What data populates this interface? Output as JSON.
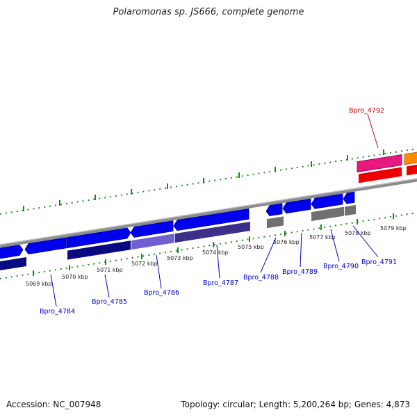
{
  "title": "Polaromonas sp. JS666, complete genome",
  "footer": {
    "accession": "Accession: NC_007948",
    "topology": "Topology: circular; Length: 5,200,264 bp; Genes: 4,873"
  },
  "colors": {
    "tick": "#1a8a1a",
    "backbone": "#8c8c8c",
    "label_blue": "#0000cc",
    "label_red": "#cc0000"
  },
  "kbp_labels": [
    "5069 kbp",
    "5070 kbp",
    "5071 kbp",
    "5072 kbp",
    "5073 kbp",
    "5074 kbp",
    "5075 kbp",
    "5076 kbp",
    "5077 kbp",
    "5078 kbp",
    "5079 kbp"
  ],
  "gene_labels": [
    {
      "id": "Bpro_4784",
      "color": "blue"
    },
    {
      "id": "Bpro_4785",
      "color": "blue"
    },
    {
      "id": "Bpro_4786",
      "color": "blue"
    },
    {
      "id": "Bpro_4787",
      "color": "blue"
    },
    {
      "id": "Bpro_4788",
      "color": "blue"
    },
    {
      "id": "Bpro_4789",
      "color": "blue"
    },
    {
      "id": "Bpro_4790",
      "color": "blue"
    },
    {
      "id": "Bpro_4791",
      "color": "blue"
    },
    {
      "id": "Bpro_4792",
      "color": "red"
    }
  ]
}
